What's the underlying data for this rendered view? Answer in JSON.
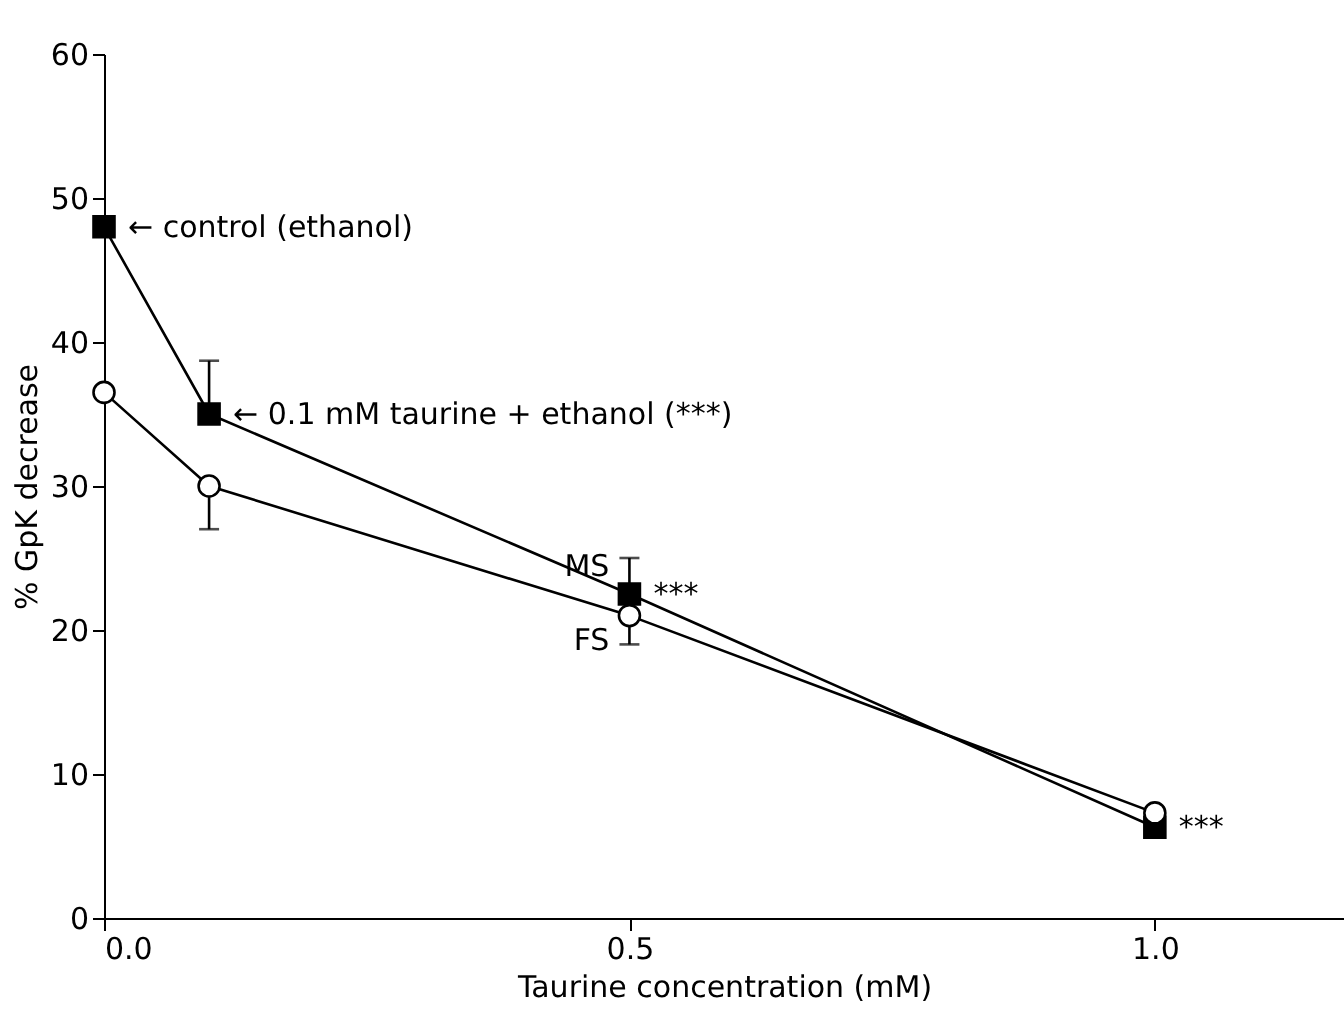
{
  "chart_data": {
    "type": "line",
    "xlabel": "Taurine concentration (mM)",
    "ylabel": "% GpK decrease",
    "x": [
      0.0,
      0.1,
      0.5,
      1.0
    ],
    "series": [
      {
        "name": "MS",
        "color": "#000000",
        "marker": "square",
        "values": [
          48,
          35,
          22.5,
          6.3
        ],
        "errors": [
          null,
          [
            35,
            38.7
          ],
          [
            22.5,
            25
          ],
          null
        ]
      },
      {
        "name": "FS",
        "color": "#000000",
        "marker": "circle",
        "values": [
          36.5,
          30,
          21,
          7.3
        ],
        "errors": [
          null,
          [
            27,
            30
          ],
          [
            19,
            21
          ],
          null
        ]
      }
    ],
    "annotations": [
      {
        "text": "← control (ethanol)",
        "x": 0.0,
        "y": 48
      },
      {
        "text": "← 0.1 mM taurine + ethanol (***)",
        "x": 0.1,
        "y": 35
      },
      {
        "text": "***",
        "x": 0.5,
        "y": 22.5
      },
      {
        "text": "***",
        "x": 1.0,
        "y": 6.3
      }
    ],
    "xlim": [
      0,
      1.18
    ],
    "xticks": [
      {
        "value": 0,
        "label": "0.0"
      },
      0.5,
      {
        "value": 1,
        "label": "1.0"
      }
    ],
    "ylim": [
      0,
      60
    ],
    "yticks": [
      0,
      10,
      20,
      30,
      40,
      50,
      60
    ],
    "grid": false,
    "legend": false,
    "line_style": "solid"
  }
}
